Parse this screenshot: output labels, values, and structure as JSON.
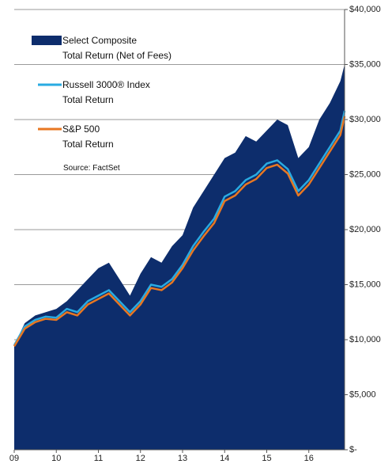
{
  "chart_data": {
    "type": "area_line",
    "annotation": "Source:  FactSet",
    "legend": "upper left",
    "grid": true,
    "x": [
      2009,
      2009.25,
      2009.5,
      2009.75,
      2010,
      2010.25,
      2010.5,
      2010.75,
      2011,
      2011.25,
      2011.5,
      2011.75,
      2012,
      2012.25,
      2012.5,
      2012.75,
      2013,
      2013.25,
      2013.5,
      2013.75,
      2014,
      2014.25,
      2014.5,
      2014.75,
      2015,
      2015.25,
      2015.5,
      2015.75,
      2016,
      2016.25,
      2016.5,
      2016.75,
      2016.85
    ],
    "xlim": [
      2009,
      2016.85
    ],
    "xticks": [
      {
        "value": 2009,
        "label": "09"
      },
      {
        "value": 2010,
        "label": "10"
      },
      {
        "value": 2011,
        "label": "11"
      },
      {
        "value": 2012,
        "label": "12"
      },
      {
        "value": 2013,
        "label": "13"
      },
      {
        "value": 2014,
        "label": "14"
      },
      {
        "value": 2015,
        "label": "15"
      },
      {
        "value": 2016,
        "label": "16"
      }
    ],
    "ylim": [
      0,
      40000
    ],
    "yticks": [
      {
        "value": 0,
        "label": "$-"
      },
      {
        "value": 5000,
        "label": "$5,000"
      },
      {
        "value": 10000,
        "label": "$10,000"
      },
      {
        "value": 15000,
        "label": "$15,000"
      },
      {
        "value": 20000,
        "label": "$20,000"
      },
      {
        "value": 25000,
        "label": "$25,000"
      },
      {
        "value": 30000,
        "label": "$30,000"
      },
      {
        "value": 35000,
        "label": "$35,000"
      },
      {
        "value": 40000,
        "label": "$40,000"
      }
    ],
    "series": [
      {
        "name": "Select Composite\nTotal Return (Net of Fees)",
        "color": "#0d2d6c",
        "style": "area",
        "values": [
          9500,
          11500,
          12200,
          12500,
          12800,
          13500,
          14500,
          15500,
          16500,
          17000,
          15500,
          14000,
          16000,
          17500,
          17000,
          18500,
          19500,
          22000,
          23500,
          25000,
          26500,
          27000,
          28500,
          28000,
          29000,
          30000,
          29500,
          26500,
          27500,
          30000,
          31500,
          33500,
          35000
        ]
      },
      {
        "name": "Russell 3000® Index\nTotal Return",
        "color": "#29abe2",
        "style": "line",
        "values": [
          9500,
          11200,
          11800,
          12100,
          12000,
          12800,
          12500,
          13500,
          14000,
          14500,
          13500,
          12500,
          13500,
          15000,
          14800,
          15500,
          16800,
          18500,
          19800,
          21000,
          23000,
          23500,
          24500,
          25000,
          26000,
          26300,
          25500,
          23500,
          24500,
          26000,
          27500,
          29000,
          30800
        ]
      },
      {
        "name": "S&P 500\nTotal Return",
        "color": "#e87722",
        "style": "line",
        "values": [
          9400,
          11000,
          11600,
          11900,
          11800,
          12500,
          12200,
          13200,
          13700,
          14200,
          13200,
          12200,
          13200,
          14700,
          14500,
          15200,
          16500,
          18100,
          19400,
          20600,
          22600,
          23100,
          24100,
          24600,
          25600,
          25900,
          25100,
          23100,
          24100,
          25600,
          27100,
          28600,
          30300
        ]
      }
    ]
  }
}
